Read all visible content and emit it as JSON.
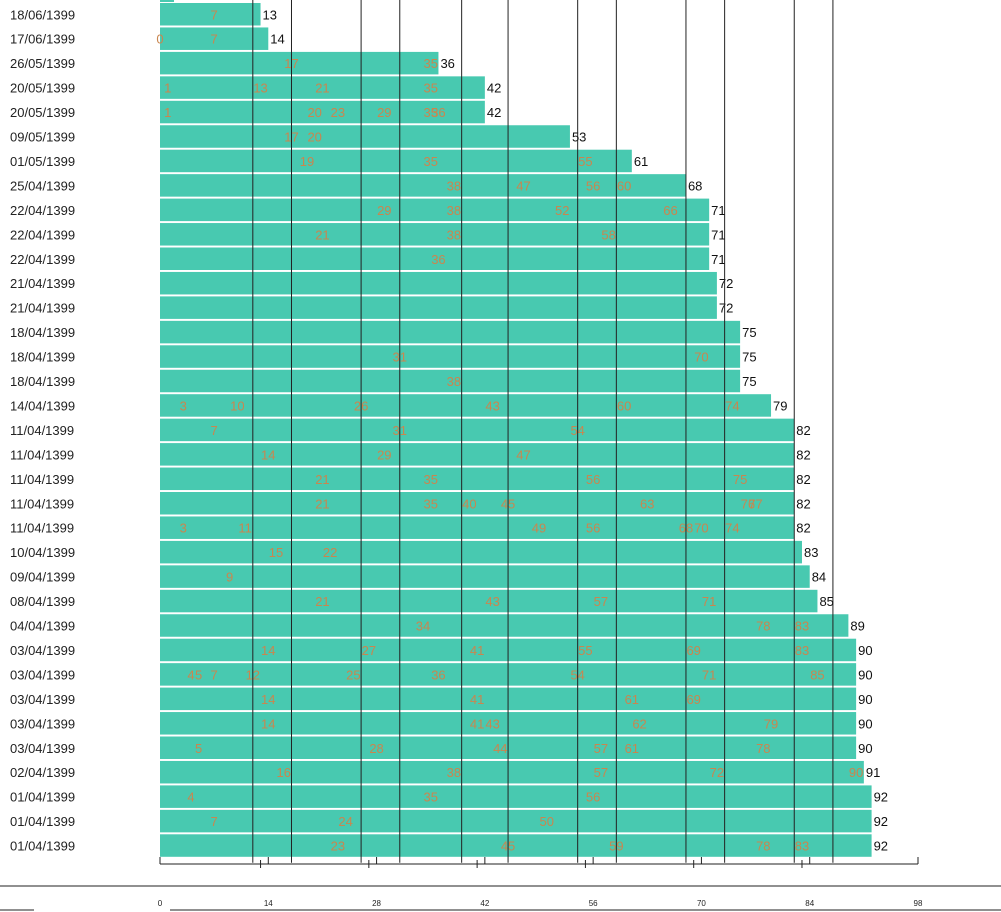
{
  "chart_data": {
    "type": "bar",
    "orientation": "horizontal",
    "title": "",
    "xlabel": "",
    "ylabel": "",
    "xlim": [
      0,
      98
    ],
    "x_ticks": [
      0,
      14,
      28,
      42,
      56,
      70,
      84,
      98
    ],
    "reference_lines": [
      12,
      17,
      26,
      31,
      39,
      45,
      54,
      59,
      68,
      73,
      82,
      87
    ],
    "grid": false,
    "bar_color": "#48c9b0",
    "end_label_color": "#111111",
    "mark_label_color": "#c9864f",
    "rows": [
      {
        "date": "18/06/1399",
        "value": 13,
        "marks": [
          7
        ]
      },
      {
        "date": "17/06/1399",
        "value": 14,
        "marks": [
          0,
          7
        ]
      },
      {
        "date": "26/05/1399",
        "value": 36,
        "marks": [
          17,
          35
        ]
      },
      {
        "date": "20/05/1399",
        "value": 42,
        "marks": [
          1,
          13,
          21,
          35
        ]
      },
      {
        "date": "20/05/1399",
        "value": 42,
        "marks": [
          1,
          20,
          23,
          29,
          35,
          36
        ]
      },
      {
        "date": "09/05/1399",
        "value": 53,
        "marks": [
          17,
          20
        ]
      },
      {
        "date": "01/05/1399",
        "value": 61,
        "marks": [
          19,
          35,
          55
        ]
      },
      {
        "date": "25/04/1399",
        "value": 68,
        "marks": [
          38,
          47,
          56,
          60
        ]
      },
      {
        "date": "22/04/1399",
        "value": 71,
        "marks": [
          29,
          38,
          52,
          66
        ]
      },
      {
        "date": "22/04/1399",
        "value": 71,
        "marks": [
          21,
          38,
          58
        ]
      },
      {
        "date": "22/04/1399",
        "value": 71,
        "marks": [
          36
        ]
      },
      {
        "date": "21/04/1399",
        "value": 72,
        "marks": []
      },
      {
        "date": "21/04/1399",
        "value": 72,
        "marks": []
      },
      {
        "date": "18/04/1399",
        "value": 75,
        "marks": []
      },
      {
        "date": "18/04/1399",
        "value": 75,
        "marks": [
          31,
          70
        ]
      },
      {
        "date": "18/04/1399",
        "value": 75,
        "marks": [
          38
        ]
      },
      {
        "date": "14/04/1399",
        "value": 79,
        "marks": [
          3,
          10,
          26,
          43,
          60,
          74
        ]
      },
      {
        "date": "11/04/1399",
        "value": 82,
        "marks": [
          7,
          31,
          54
        ]
      },
      {
        "date": "11/04/1399",
        "value": 82,
        "marks": [
          14,
          29,
          47
        ]
      },
      {
        "date": "11/04/1399",
        "value": 82,
        "marks": [
          21,
          35,
          56,
          75
        ]
      },
      {
        "date": "11/04/1399",
        "value": 82,
        "marks": [
          21,
          35,
          40,
          45,
          63,
          76,
          77
        ]
      },
      {
        "date": "11/04/1399",
        "value": 82,
        "marks": [
          3,
          11,
          49,
          56,
          68,
          70,
          74
        ]
      },
      {
        "date": "10/04/1399",
        "value": 83,
        "marks": [
          15,
          22
        ]
      },
      {
        "date": "09/04/1399",
        "value": 84,
        "marks": [
          9
        ]
      },
      {
        "date": "08/04/1399",
        "value": 85,
        "marks": [
          21,
          43,
          57,
          71
        ]
      },
      {
        "date": "04/04/1399",
        "value": 89,
        "marks": [
          34,
          78,
          83
        ]
      },
      {
        "date": "03/04/1399",
        "value": 90,
        "marks": [
          14,
          27,
          41,
          55,
          69,
          83
        ]
      },
      {
        "date": "03/04/1399",
        "value": 90,
        "marks": [
          4,
          5,
          7,
          12,
          25,
          36,
          54,
          71,
          85
        ]
      },
      {
        "date": "03/04/1399",
        "value": 90,
        "marks": [
          14,
          41,
          61,
          69
        ]
      },
      {
        "date": "03/04/1399",
        "value": 90,
        "marks": [
          14,
          41,
          43,
          62,
          79
        ]
      },
      {
        "date": "03/04/1399",
        "value": 90,
        "marks": [
          5,
          28,
          44,
          57,
          61,
          78
        ]
      },
      {
        "date": "02/04/1399",
        "value": 91,
        "marks": [
          16,
          38,
          57,
          72,
          90
        ]
      },
      {
        "date": "01/04/1399",
        "value": 92,
        "marks": [
          4,
          35,
          56
        ]
      },
      {
        "date": "01/04/1399",
        "value": 92,
        "marks": [
          7,
          24,
          50
        ]
      },
      {
        "date": "01/04/1399",
        "value": 92,
        "marks": [
          23,
          45,
          59,
          78,
          83
        ]
      }
    ]
  }
}
